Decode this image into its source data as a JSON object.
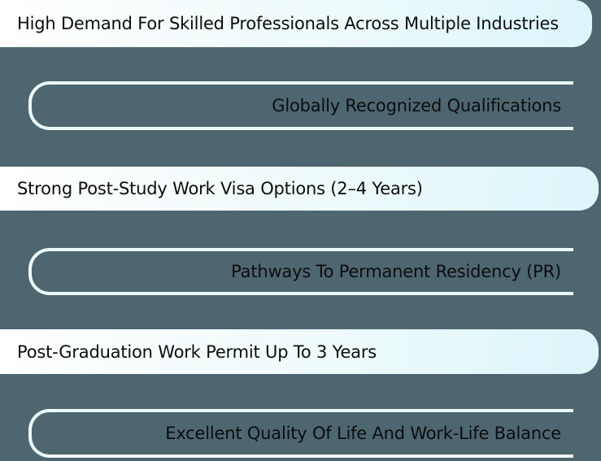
{
  "page": {
    "background": "#4d6670",
    "description_rows_count": 6
  },
  "colors": {
    "bg": "#4d6670",
    "bar_fill_start": "#ffffff",
    "bar_fill_mid": "#eefafb",
    "bar_fill_end": "#dcf5f9",
    "outline_border": "#ecfafc",
    "text": "#0d0d0d"
  },
  "rows": [
    {
      "label": "High Demand For Skilled Professionals Across Multiple Industries",
      "variant": "solid-gradient",
      "align": "left"
    },
    {
      "label": "Globally Recognized Qualifications",
      "variant": "outline",
      "align": "right"
    },
    {
      "label": "Strong Post-Study Work Visa Options (2–4 Years)",
      "variant": "solid-gradient",
      "align": "left"
    },
    {
      "label": "Pathways To Permanent Residency (PR)",
      "variant": "outline",
      "align": "right"
    },
    {
      "label": "Post-Graduation Work Permit Up To 3 Years",
      "variant": "solid-gradient",
      "align": "left"
    },
    {
      "label": "Excellent Quality Of Life And Work-Life Balance",
      "variant": "outline",
      "align": "right"
    }
  ]
}
